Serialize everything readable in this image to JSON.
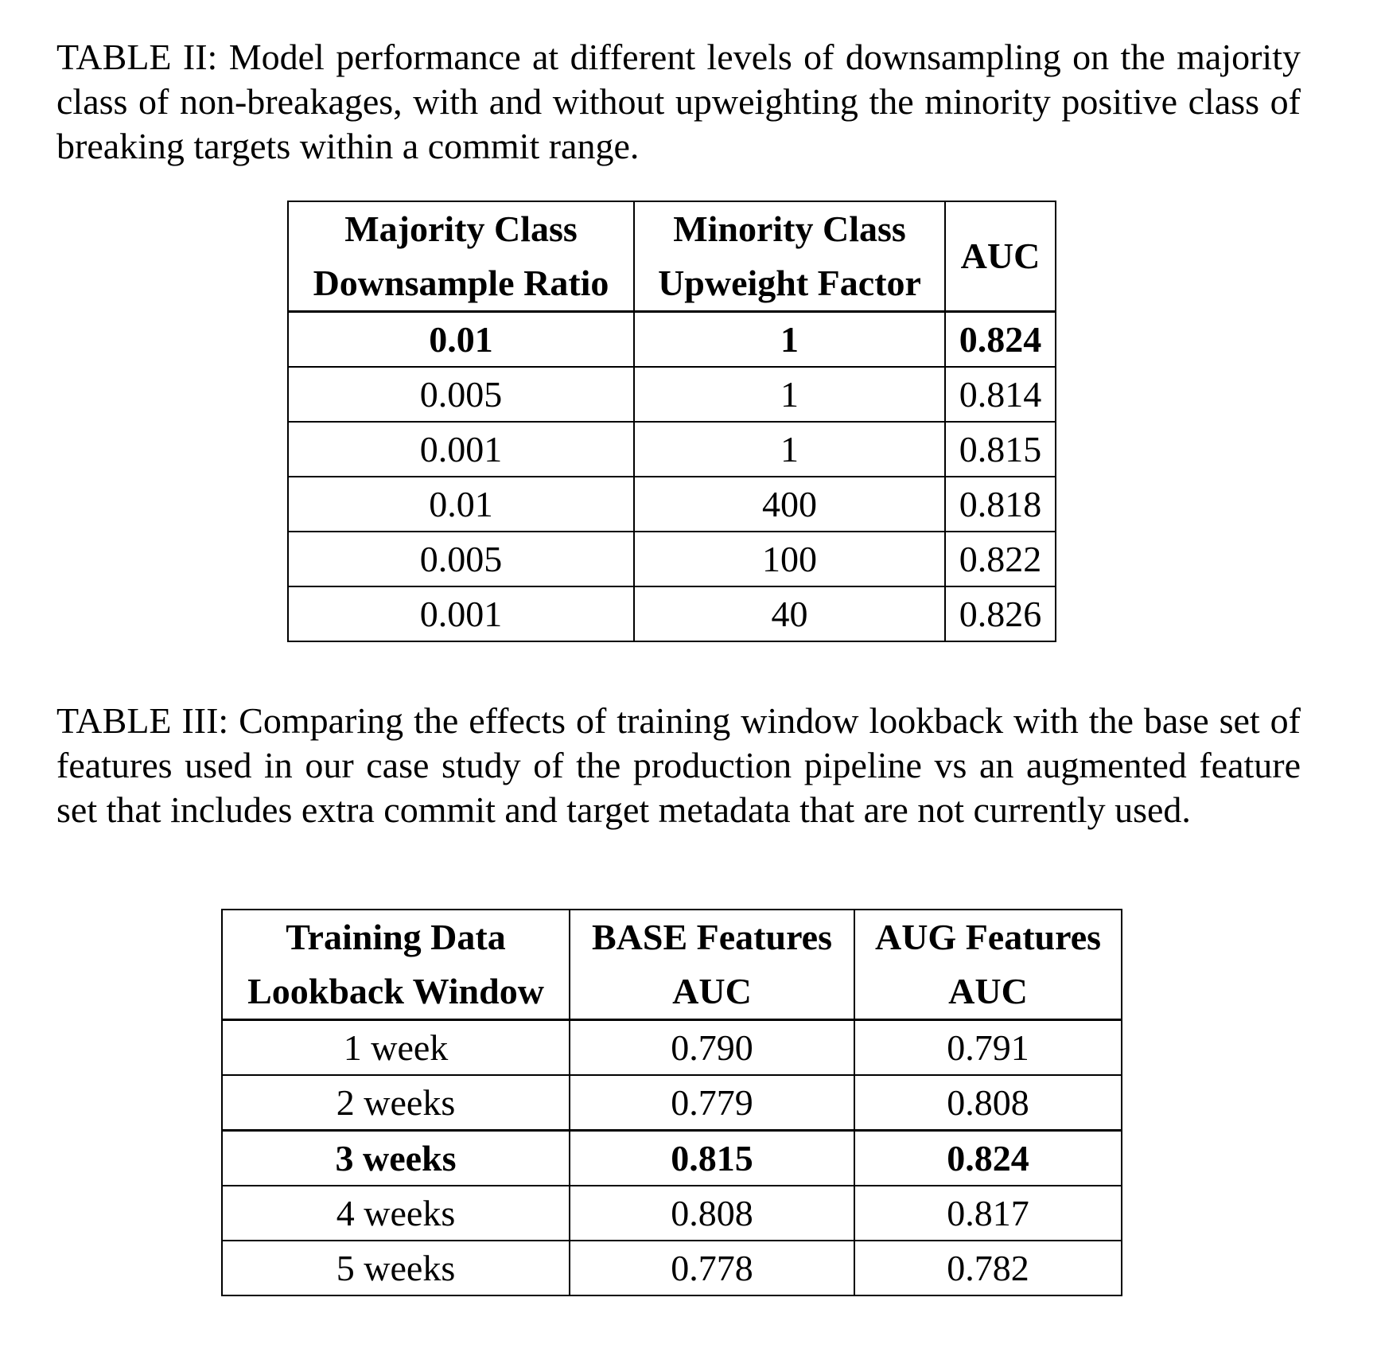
{
  "table2": {
    "caption": "TABLE II: Model performance at different levels of downsampling on the majority class of non-breakages, with and without upweighting the minority positive class of breaking targets within a commit range.",
    "headers": [
      [
        "Majority Class",
        "Downsample Ratio"
      ],
      [
        "Minority Class",
        "Upweight Factor"
      ],
      [
        "AUC"
      ]
    ],
    "rows": [
      {
        "ratio": "0.01",
        "factor": "1",
        "auc": "0.824",
        "bold": true
      },
      {
        "ratio": "0.005",
        "factor": "1",
        "auc": "0.814",
        "bold": false
      },
      {
        "ratio": "0.001",
        "factor": "1",
        "auc": "0.815",
        "bold": false
      },
      {
        "ratio": "0.01",
        "factor": "400",
        "auc": "0.818",
        "bold": false
      },
      {
        "ratio": "0.005",
        "factor": "100",
        "auc": "0.822",
        "bold": false
      },
      {
        "ratio": "0.001",
        "factor": "40",
        "auc": "0.826",
        "bold": false
      }
    ]
  },
  "table3": {
    "caption": "TABLE III: Comparing the effects of training window lookback with the base set of features used in our case study of the production pipeline vs an augmented feature set that includes extra commit and target metadata that are not currently used.",
    "headers": [
      [
        "Training Data",
        "Lookback Window"
      ],
      [
        "BASE Features",
        "AUC"
      ],
      [
        "AUG Features",
        "AUC"
      ]
    ],
    "rows": [
      {
        "window": "1 week",
        "base": "0.790",
        "aug": "0.791",
        "bold": false
      },
      {
        "window": "2 weeks",
        "base": "0.779",
        "aug": "0.808",
        "bold": false
      },
      {
        "window": "3 weeks",
        "base": "0.815",
        "aug": "0.824",
        "bold": true
      },
      {
        "window": "4 weeks",
        "base": "0.808",
        "aug": "0.817",
        "bold": false
      },
      {
        "window": "5 weeks",
        "base": "0.778",
        "aug": "0.782",
        "bold": false
      }
    ]
  }
}
